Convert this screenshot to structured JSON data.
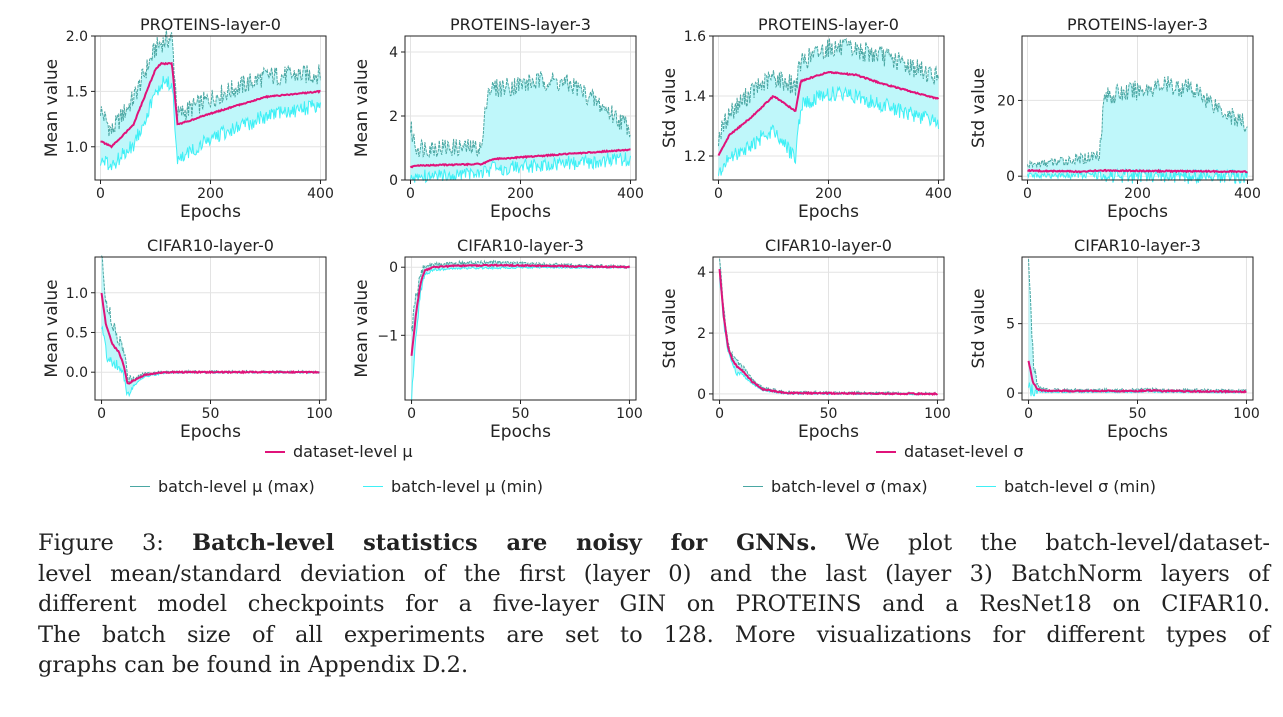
{
  "chart_data": [
    {
      "type": "line",
      "title": "PROTEINS-layer-0",
      "xlabel": "Epochs",
      "ylabel": "Mean value",
      "xlim": [
        -10,
        410
      ],
      "ylim": [
        0.7,
        2.0
      ],
      "xticks": [
        0,
        200,
        400
      ],
      "yticks": [
        1.0,
        1.5,
        2.0
      ],
      "yticklabels": [
        "1.0",
        "1.5",
        "2.0"
      ],
      "series": [
        {
          "name": "dataset-level μ",
          "x": [
            0,
            20,
            60,
            100,
            110,
            130,
            140,
            200,
            300,
            400
          ],
          "values": [
            1.05,
            1.0,
            1.2,
            1.7,
            1.75,
            1.75,
            1.2,
            1.3,
            1.45,
            1.5
          ]
        },
        {
          "name": "batch-level μ (max)",
          "x": [
            0,
            20,
            60,
            100,
            110,
            130,
            140,
            200,
            300,
            400
          ],
          "values": [
            1.3,
            1.1,
            1.4,
            1.85,
            1.9,
            1.95,
            1.25,
            1.4,
            1.6,
            1.62
          ]
        },
        {
          "name": "batch-level μ (min)",
          "x": [
            0,
            20,
            60,
            100,
            110,
            130,
            140,
            200,
            300,
            400
          ],
          "values": [
            0.9,
            0.85,
            1.05,
            1.5,
            1.6,
            1.6,
            0.9,
            1.1,
            1.3,
            1.4
          ]
        }
      ]
    },
    {
      "type": "line",
      "title": "PROTEINS-layer-3",
      "xlabel": "Epochs",
      "ylabel": "Mean value",
      "xlim": [
        -10,
        410
      ],
      "ylim": [
        0,
        4.5
      ],
      "xticks": [
        0,
        200,
        400
      ],
      "yticks": [
        0,
        2,
        4
      ],
      "yticklabels": [
        "0",
        "2",
        "4"
      ],
      "series": [
        {
          "name": "dataset-level μ",
          "x": [
            0,
            10,
            130,
            150,
            400
          ],
          "values": [
            0.4,
            0.45,
            0.5,
            0.65,
            0.95
          ]
        },
        {
          "name": "batch-level μ (max)",
          "x": [
            0,
            10,
            130,
            140,
            250,
            300,
            400
          ],
          "values": [
            1.5,
            0.9,
            0.9,
            2.7,
            3.0,
            2.8,
            1.5
          ]
        },
        {
          "name": "batch-level μ (min)",
          "x": [
            0,
            10,
            130,
            150,
            400
          ],
          "values": [
            0.15,
            0.2,
            0.3,
            0.45,
            0.75
          ]
        }
      ]
    },
    {
      "type": "line",
      "title": "PROTEINS-layer-0",
      "xlabel": "Epochs",
      "ylabel": "Std value",
      "xlim": [
        -10,
        410
      ],
      "ylim": [
        1.12,
        1.6
      ],
      "xticks": [
        0,
        200,
        400
      ],
      "yticks": [
        1.2,
        1.4,
        1.6
      ],
      "yticklabels": [
        "1.2",
        "1.4",
        "1.6"
      ],
      "series": [
        {
          "name": "dataset-level σ",
          "x": [
            0,
            20,
            60,
            100,
            140,
            150,
            200,
            250,
            300,
            400
          ],
          "values": [
            1.2,
            1.27,
            1.33,
            1.4,
            1.35,
            1.45,
            1.48,
            1.47,
            1.44,
            1.39
          ]
        },
        {
          "name": "batch-level σ (max)",
          "x": [
            0,
            20,
            60,
            100,
            140,
            150,
            200,
            250,
            300,
            400
          ],
          "values": [
            1.25,
            1.33,
            1.4,
            1.45,
            1.42,
            1.5,
            1.55,
            1.54,
            1.52,
            1.45
          ]
        },
        {
          "name": "batch-level σ (min)",
          "x": [
            0,
            20,
            60,
            100,
            140,
            150,
            200,
            250,
            300,
            400
          ],
          "values": [
            1.15,
            1.2,
            1.25,
            1.3,
            1.2,
            1.38,
            1.42,
            1.41,
            1.38,
            1.32
          ]
        }
      ]
    },
    {
      "type": "line",
      "title": "PROTEINS-layer-3",
      "xlabel": "Epochs",
      "ylabel": "Std value",
      "xlim": [
        -10,
        410
      ],
      "ylim": [
        -1,
        37
      ],
      "xticks": [
        0,
        200,
        400
      ],
      "yticks": [
        0,
        20
      ],
      "yticklabels": [
        "0",
        "20"
      ],
      "series": [
        {
          "name": "dataset-level σ",
          "x": [
            0,
            100,
            130,
            400
          ],
          "values": [
            1.5,
            1.2,
            1.5,
            1.2
          ]
        },
        {
          "name": "batch-level σ (max)",
          "x": [
            0,
            100,
            130,
            140,
            250,
            300,
            400
          ],
          "values": [
            2.5,
            4,
            5,
            20,
            23,
            22,
            12
          ]
        },
        {
          "name": "batch-level σ (min)",
          "x": [
            0,
            100,
            130,
            400
          ],
          "values": [
            0.5,
            0.6,
            0.8,
            0.7
          ]
        }
      ]
    },
    {
      "type": "line",
      "title": "CIFAR10-layer-0",
      "xlabel": "Epochs",
      "ylabel": "Mean value",
      "xlim": [
        -3,
        103
      ],
      "ylim": [
        -0.35,
        1.45
      ],
      "xticks": [
        0,
        50,
        100
      ],
      "yticks": [
        0.0,
        0.5,
        1.0
      ],
      "yticklabels": [
        "0.0",
        "0.5",
        "1.0"
      ],
      "series": [
        {
          "name": "dataset-level μ",
          "x": [
            0,
            2,
            5,
            8,
            10,
            12,
            15,
            20,
            30,
            100
          ],
          "values": [
            1.0,
            0.6,
            0.35,
            0.25,
            0.1,
            -0.15,
            -0.1,
            -0.03,
            0,
            0
          ]
        },
        {
          "name": "batch-level μ (max)",
          "x": [
            0,
            2,
            5,
            8,
            10,
            12,
            15,
            20,
            30,
            100
          ],
          "values": [
            1.4,
            0.9,
            0.5,
            0.35,
            0.25,
            -0.1,
            -0.08,
            -0.02,
            0,
            0
          ]
        },
        {
          "name": "batch-level μ (min)",
          "x": [
            0,
            2,
            5,
            8,
            10,
            12,
            15,
            20,
            30,
            100
          ],
          "values": [
            0.6,
            0.3,
            0.15,
            0.1,
            0,
            -0.28,
            -0.15,
            -0.05,
            0,
            0
          ]
        }
      ]
    },
    {
      "type": "line",
      "title": "CIFAR10-layer-3",
      "xlabel": "Epochs",
      "ylabel": "Mean value",
      "xlim": [
        -3,
        103
      ],
      "ylim": [
        -1.95,
        0.15
      ],
      "xticks": [
        0,
        50,
        100
      ],
      "yticks": [
        -1,
        0
      ],
      "yticklabels": [
        "−1",
        "0"
      ],
      "series": [
        {
          "name": "dataset-level μ",
          "x": [
            0,
            2,
            4,
            6,
            10,
            20,
            40,
            60,
            100
          ],
          "values": [
            -1.3,
            -0.7,
            -0.25,
            -0.05,
            0,
            0.02,
            0.03,
            0.02,
            0
          ]
        },
        {
          "name": "batch-level μ (max)",
          "x": [
            0,
            2,
            4,
            6,
            10,
            20,
            40,
            60,
            100
          ],
          "values": [
            -1.0,
            -0.5,
            -0.15,
            0,
            0.03,
            0.05,
            0.06,
            0.04,
            0
          ]
        },
        {
          "name": "batch-level μ (min)",
          "x": [
            0,
            2,
            4,
            6,
            10,
            20,
            40,
            60,
            100
          ],
          "values": [
            -1.85,
            -1.0,
            -0.35,
            -0.1,
            -0.03,
            -0.01,
            0,
            0,
            0
          ]
        }
      ]
    },
    {
      "type": "line",
      "title": "CIFAR10-layer-0",
      "xlabel": "Epochs",
      "ylabel": "Std value",
      "xlim": [
        -3,
        103
      ],
      "ylim": [
        -0.2,
        4.5
      ],
      "xticks": [
        0,
        50,
        100
      ],
      "yticks": [
        0,
        2,
        4
      ],
      "yticklabels": [
        "0",
        "2",
        "4"
      ],
      "series": [
        {
          "name": "dataset-level σ",
          "x": [
            0,
            2,
            4,
            6,
            8,
            10,
            15,
            20,
            30,
            100
          ],
          "values": [
            4.1,
            2.5,
            1.5,
            1.1,
            0.9,
            0.8,
            0.4,
            0.15,
            0.03,
            0
          ]
        },
        {
          "name": "batch-level σ (max)",
          "x": [
            0,
            2,
            4,
            6,
            8,
            10,
            15,
            20,
            30,
            100
          ],
          "values": [
            4.3,
            2.7,
            1.6,
            1.2,
            1.0,
            0.9,
            0.45,
            0.18,
            0.04,
            0
          ]
        },
        {
          "name": "batch-level σ (min)",
          "x": [
            0,
            2,
            4,
            6,
            8,
            10,
            15,
            20,
            30,
            100
          ],
          "values": [
            3.9,
            2.3,
            1.4,
            1.0,
            0.7,
            0.7,
            0.35,
            0.12,
            0.02,
            0
          ]
        }
      ]
    },
    {
      "type": "line",
      "title": "CIFAR10-layer-3",
      "xlabel": "Epochs",
      "ylabel": "Std value",
      "xlim": [
        -3,
        103
      ],
      "ylim": [
        -0.5,
        9.8
      ],
      "xticks": [
        0,
        50,
        100
      ],
      "yticks": [
        0,
        5
      ],
      "yticklabels": [
        "0",
        "5"
      ],
      "series": [
        {
          "name": "dataset-level σ",
          "x": [
            0,
            2,
            4,
            6,
            10,
            50,
            55,
            60,
            100
          ],
          "values": [
            2.3,
            0.8,
            0.3,
            0.2,
            0.15,
            0.15,
            0.2,
            0.15,
            0.1
          ]
        },
        {
          "name": "batch-level σ (max)",
          "x": [
            0,
            2,
            4,
            6,
            10,
            50,
            55,
            60,
            100
          ],
          "values": [
            9.5,
            2.5,
            0.6,
            0.3,
            0.2,
            0.2,
            0.25,
            0.2,
            0.15
          ]
        },
        {
          "name": "batch-level σ (min)",
          "x": [
            0,
            2,
            4,
            6,
            10,
            50,
            55,
            60,
            100
          ],
          "values": [
            0.8,
            0.3,
            0.15,
            0.1,
            0.1,
            0.1,
            0.15,
            0.1,
            0.08
          ]
        }
      ]
    }
  ],
  "legend_left": {
    "dataset": "dataset-level μ",
    "max": "batch-level μ (max)",
    "min": "batch-level μ (min)"
  },
  "legend_right": {
    "dataset": "dataset-level σ",
    "max": "batch-level σ (max)",
    "min": "batch-level σ (min)"
  },
  "colors": {
    "dataset": "#e0137a",
    "max": "#4aa7a3",
    "min": "#3ff0f6",
    "band": "#bff7fa",
    "grid": "#e3e3e3"
  },
  "caption": {
    "label": "Figure 3:",
    "bold": "Batch-level statistics are noisy for GNNs.",
    "line1_rest": "We plot the batch-level/dataset-",
    "line2": "level mean/standard deviation of the first (layer 0) and the last (layer 3) BatchNorm layers of",
    "line3": "different model checkpoints for a five-layer GIN on PROTEINS and a ResNet18 on CIFAR10.",
    "line4": "The batch size of all experiments are set to 128. More visualizations for different types of",
    "line5": "graphs can be found in Appendix D.2."
  }
}
